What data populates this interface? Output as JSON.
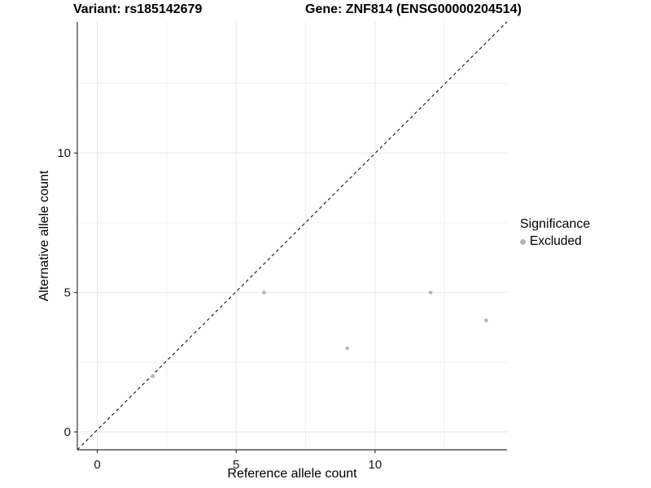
{
  "header": {
    "title_left": "Variant: rs185142679",
    "title_right": "Gene: ZNF814 (ENSG00000204514)"
  },
  "chart_data": {
    "type": "scatter",
    "title": "Variant: rs185142679 — Gene: ZNF814 (ENSG00000204514)",
    "xlabel": "Reference allele count",
    "ylabel": "Alternative allele count",
    "xlim": [
      -0.72,
      14.75
    ],
    "ylim": [
      -0.64,
      14.7
    ],
    "xticks": [
      0,
      5,
      10
    ],
    "yticks": [
      0,
      5,
      10
    ],
    "minor_ticks_x": [
      2.5,
      7.5,
      12.5
    ],
    "minor_ticks_y": [
      2.5,
      7.5,
      12.5
    ],
    "grid": "major+minor",
    "series": [
      {
        "name": "Excluded",
        "points": [
          [
            2,
            2
          ],
          [
            6,
            5
          ],
          [
            9,
            3
          ],
          [
            12,
            5
          ],
          [
            14,
            4
          ]
        ]
      }
    ],
    "reference_line": {
      "type": "identity y=x",
      "style": "dashed",
      "color": "#000000"
    },
    "legend": {
      "title": "Significance",
      "position": "right",
      "items": [
        {
          "label": "Excluded",
          "color": "#b5b5b5"
        }
      ]
    },
    "colors": {
      "point": "#b5b5b5",
      "grid_major": "#e5e5e5",
      "grid_minor": "#f0f0f0",
      "axis": "#333333",
      "dashed_line": "#000000"
    }
  }
}
